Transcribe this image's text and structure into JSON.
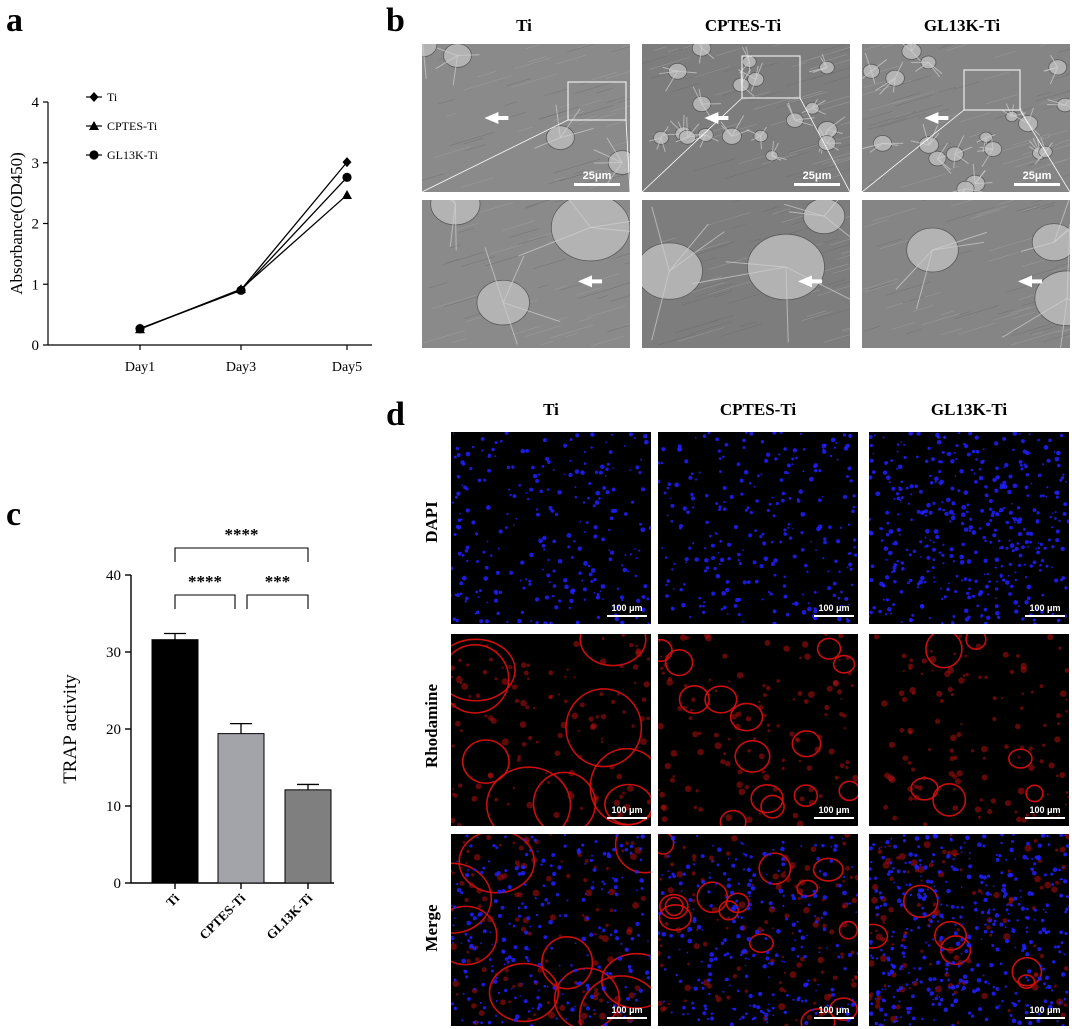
{
  "panels": {
    "a": "a",
    "b": "b",
    "c": "c",
    "d": "d"
  },
  "chart_data": [
    {
      "panel": "a",
      "type": "line",
      "categories": [
        "Day1",
        "Day3",
        "Day5"
      ],
      "series": [
        {
          "name": "Ti",
          "marker": "diamond",
          "values": [
            0.27,
            0.91,
            3.01
          ]
        },
        {
          "name": "CPTES-Ti",
          "marker": "triangle",
          "values": [
            0.26,
            0.92,
            2.47
          ]
        },
        {
          "name": "GL13K-Ti",
          "marker": "circle",
          "values": [
            0.27,
            0.9,
            2.76
          ]
        }
      ],
      "xlabel": "",
      "ylabel": "Absorbance(OD450)",
      "ylim": [
        0,
        4
      ],
      "yticks": [
        "0",
        "1",
        "2",
        "3",
        "4"
      ],
      "grid": false,
      "legend": "top-left"
    },
    {
      "panel": "c",
      "type": "bar",
      "categories": [
        "Ti",
        "CPTES-Ti",
        "GL13K-Ti"
      ],
      "values": [
        31.6,
        19.4,
        12.1
      ],
      "errors": [
        0.8,
        1.3,
        0.7
      ],
      "bar_colors": [
        "#000000",
        "#a3a3aa",
        "#7f7f7f"
      ],
      "xlabel": "",
      "ylabel": "TRAP activity",
      "ylim": [
        0,
        40
      ],
      "yticks": [
        "0",
        "10",
        "20",
        "30",
        "40"
      ],
      "grid": false,
      "significance": [
        {
          "from": "Ti",
          "to": "CPTES-Ti",
          "label": "****"
        },
        {
          "from": "CPTES-Ti",
          "to": "GL13K-Ti",
          "label": "***"
        },
        {
          "from": "Ti",
          "to": "GL13K-Ti",
          "label": "****"
        }
      ]
    }
  ],
  "sem": {
    "columns": [
      "Ti",
      "CPTES-Ti",
      "GL13K-Ti"
    ],
    "scale_label": "25μm"
  },
  "fluorescence": {
    "columns": [
      "Ti",
      "CPTES-Ti",
      "GL13K-Ti"
    ],
    "rows": [
      "DAPI",
      "Rhodamine",
      "Merge"
    ],
    "scale_label": "100 μm"
  }
}
